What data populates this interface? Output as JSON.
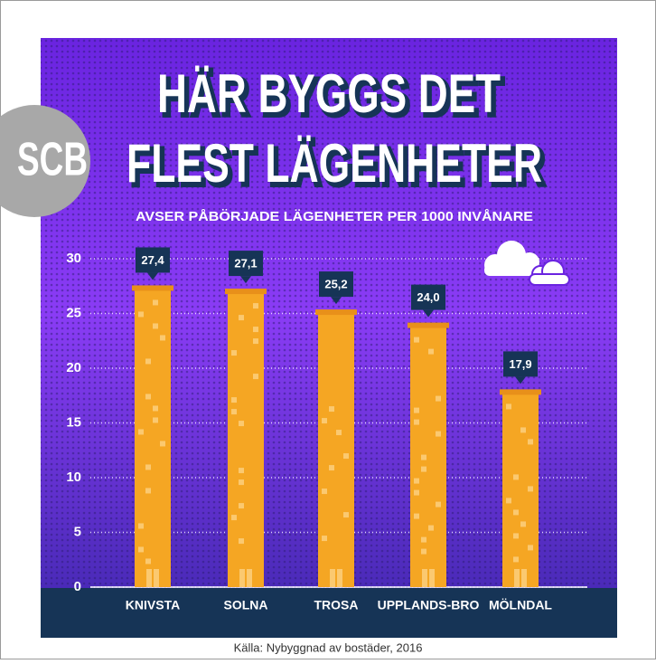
{
  "chart_data": {
    "type": "bar",
    "title": [
      "HÄR BYGGS DET",
      "FLEST LÄGENHETER"
    ],
    "subtitle": "AVSER PÅBÖRJADE LÄGENHETER PER 1000 INVÅNARE",
    "logo": "SCB",
    "source": "Källa: Nybyggnad av bostäder, 2016",
    "categories": [
      "KNIVSTA",
      "SOLNA",
      "TROSA",
      "UPPLANDS-BRO",
      "MÖLNDAL"
    ],
    "values": [
      27.4,
      27.1,
      25.2,
      24.0,
      17.9
    ],
    "value_labels": [
      "27,4",
      "27,1",
      "25,2",
      "24,0",
      "17,9"
    ],
    "color": "#f5a623",
    "ylim": [
      0,
      30
    ],
    "yticks": [
      0,
      5,
      10,
      15,
      20,
      25,
      30
    ],
    "grid": true
  }
}
